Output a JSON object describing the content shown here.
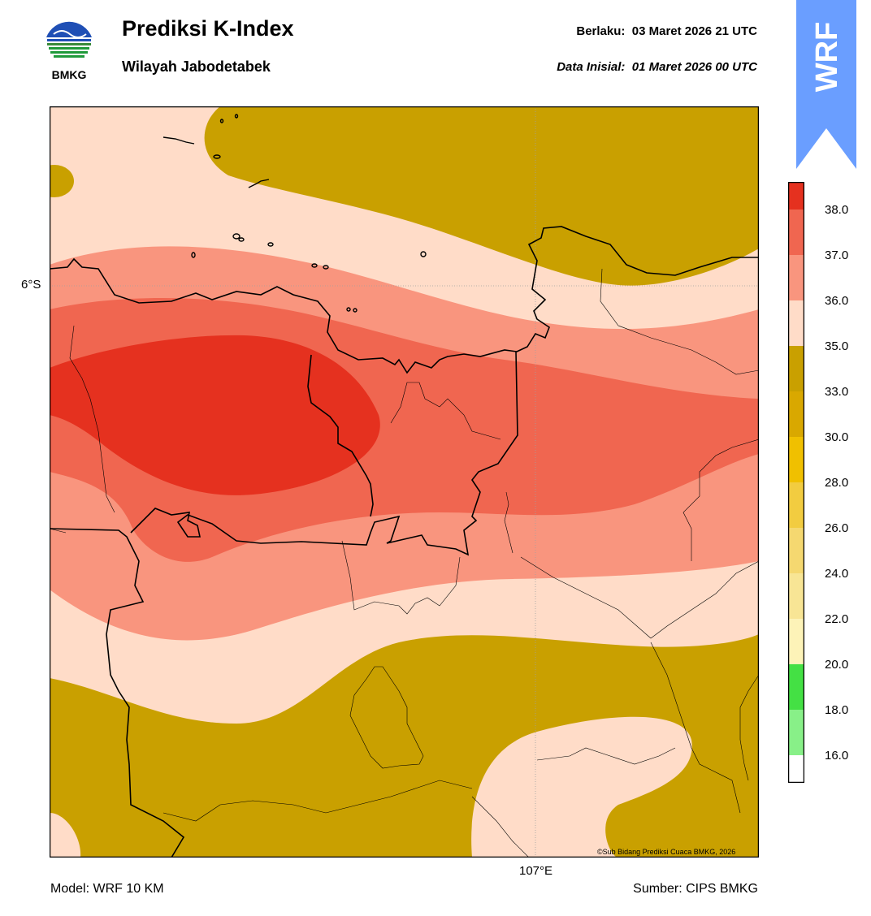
{
  "header": {
    "title": "Prediksi K-Index",
    "subtitle": "Wilayah Jabodetabek",
    "valid_label": "Berlaku:",
    "valid_time": "03 Maret 2026 21 UTC",
    "init_label": "Data Inisial:",
    "init_time": "01 Maret 2026 00 UTC"
  },
  "logo": {
    "text": "BMKG",
    "icon": "bmkg-logo-icon"
  },
  "badge": {
    "text": "WRF",
    "color": "#6a9eff"
  },
  "map": {
    "lat_label": "6°S",
    "lon_label": "107°E",
    "credit": "©Sub Bidang Prediksi Cuaca BMKG, 2026",
    "colors": {
      "k33_35": "#c9a000",
      "k35_36": "#ffdcc8",
      "k36_37": "#f9957e",
      "k37_38": "#f06650",
      "k38_plus": "#e5311f"
    }
  },
  "footer": {
    "model": "Model: WRF 10 KM",
    "source": "Sumber: CIPS BMKG"
  },
  "colorbar": {
    "ticks": [
      "38.0",
      "37.0",
      "36.0",
      "35.0",
      "33.0",
      "30.0",
      "28.0",
      "26.0",
      "24.0",
      "22.0",
      "20.0",
      "18.0",
      "16.0"
    ],
    "colors_top_to_bottom": [
      "#e5311f",
      "#f06650",
      "#f9957e",
      "#ffdcc8",
      "#c9a000",
      "#d9a800",
      "#f0c000",
      "#f2cc40",
      "#f5d870",
      "#f8e595",
      "#fdf3b8",
      "#44e044",
      "#88f088",
      "#b8f8c0",
      "#ffffff"
    ]
  }
}
